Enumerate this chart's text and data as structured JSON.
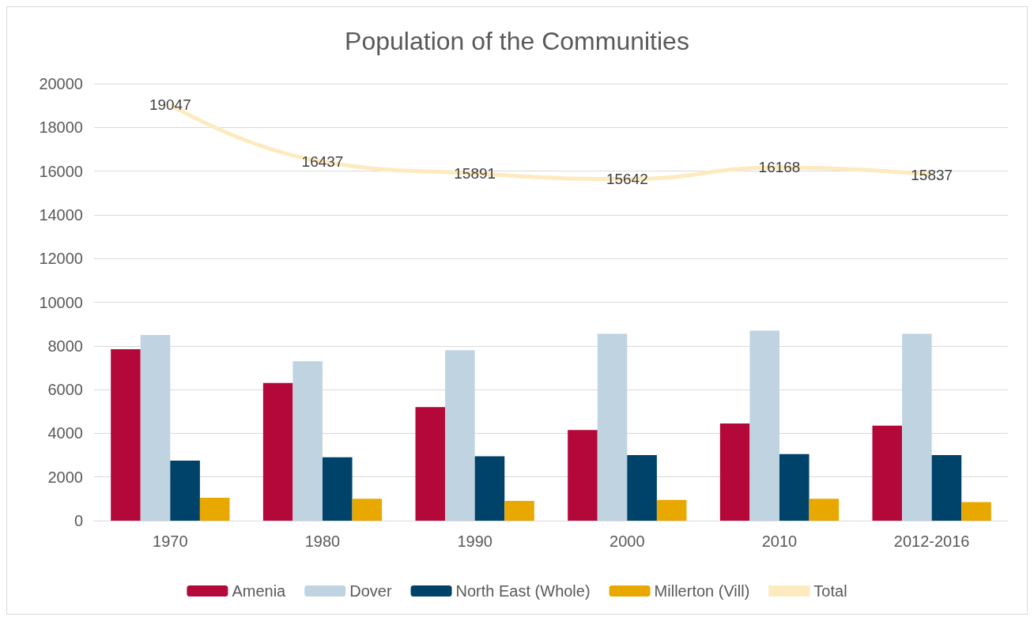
{
  "chart_data": {
    "type": "bar",
    "title": "Population of the Communities",
    "categories": [
      "1970",
      "1980",
      "1990",
      "2000",
      "2010",
      "2012-2016"
    ],
    "series": [
      {
        "name": "Amenia",
        "color": "#b5083a",
        "values": [
          7850,
          6300,
          5200,
          4150,
          4450,
          4350
        ]
      },
      {
        "name": "Dover",
        "color": "#c0d3e1",
        "values": [
          8500,
          7300,
          7800,
          8550,
          8700,
          8550
        ]
      },
      {
        "name": "North East (Whole)",
        "color": "#00436a",
        "values": [
          2750,
          2900,
          2950,
          3000,
          3050,
          3000
        ]
      },
      {
        "name": "Millerton (Vill)",
        "color": "#e8a800",
        "values": [
          1050,
          1000,
          900,
          950,
          1000,
          850
        ]
      },
      {
        "name": "Total",
        "type": "line",
        "color": "#fdebbf",
        "values": [
          19047,
          16437,
          15891,
          15642,
          16168,
          15837
        ],
        "value_labels": [
          "19047",
          "16437",
          "15891",
          "15642",
          "16168",
          "15837"
        ]
      }
    ],
    "ylim": [
      0,
      20000
    ],
    "yticks": [
      0,
      2000,
      4000,
      6000,
      8000,
      10000,
      12000,
      14000,
      16000,
      18000,
      20000
    ],
    "grid": "y",
    "legend": "bottom",
    "marker": "none"
  }
}
